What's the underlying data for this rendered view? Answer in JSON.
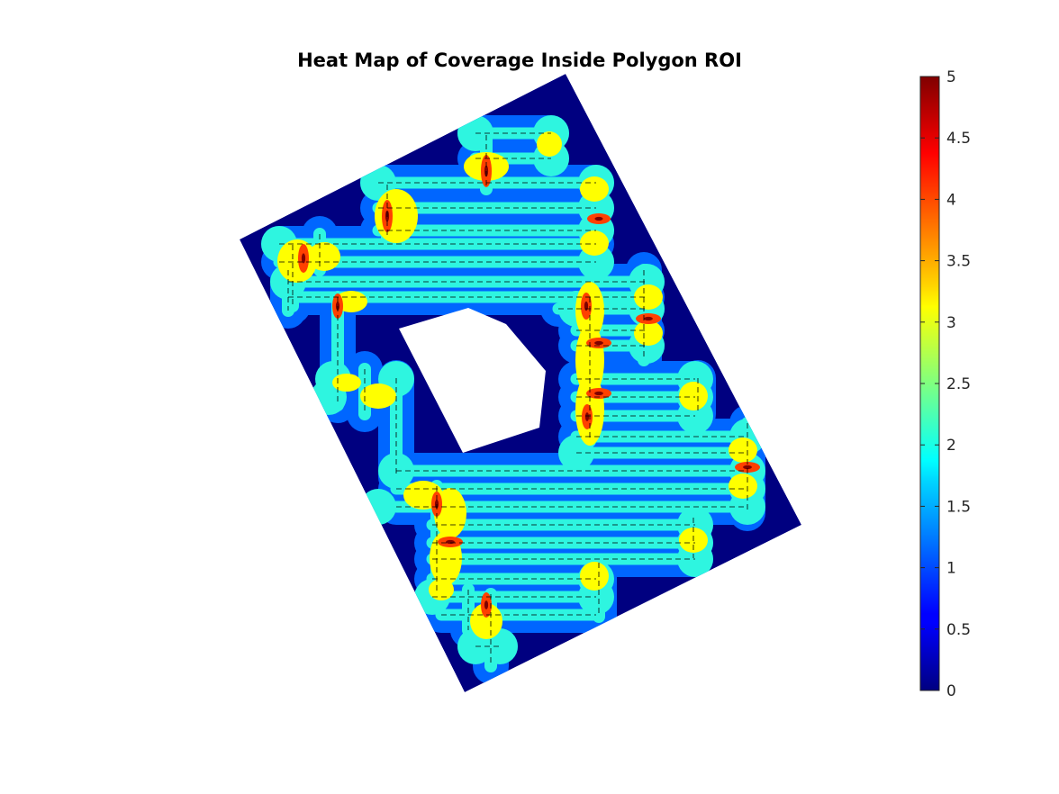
{
  "chart_data": {
    "type": "heatmap",
    "title": "Heat Map of Coverage Inside Polygon ROI",
    "xlabel": "",
    "ylabel": "",
    "colormap": "jet",
    "clim": [
      0,
      5
    ],
    "colorbar": {
      "location": "right",
      "ticks": [
        0,
        0.5,
        1,
        1.5,
        2,
        2.5,
        3,
        3.5,
        4,
        4.5,
        5
      ],
      "tick_labels": [
        "0",
        "0.5",
        "1",
        "1.5",
        "2",
        "2.5",
        "3",
        "3.5",
        "4",
        "4.5",
        "5"
      ]
    },
    "axes_visible": false,
    "grid": false,
    "background_value": 0,
    "swath_single_value": 1.4,
    "swath_overlap_value": 2.0,
    "turn_overlap_value": 3.1,
    "hotspot_value": 4.3,
    "path_style": "dashed-black"
  },
  "colors": {
    "background": "#000080",
    "single": "#0066ff",
    "double": "#2ef5e0",
    "triple": "#ffff00",
    "hotspot": "#ff4000",
    "peak": "#800000",
    "hole": "#ffffff"
  }
}
